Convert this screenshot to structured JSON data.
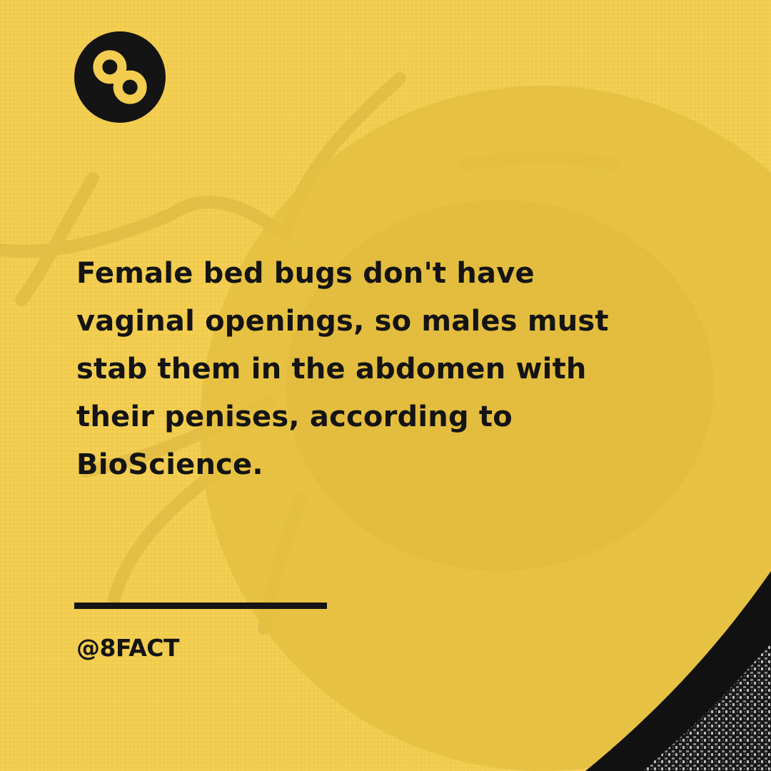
{
  "brand": {
    "logo_icon": "infinity-eight-icon",
    "handle": "@8FACT"
  },
  "post": {
    "fact_text": "Female bed bugs don't have vaginal openings, so males must stab them in the abdomen with their penises, according to BioScience."
  },
  "colors": {
    "background": "#f2cd50",
    "overlay": "#e6c040",
    "text": "#141414",
    "accent_dark": "#141414"
  }
}
